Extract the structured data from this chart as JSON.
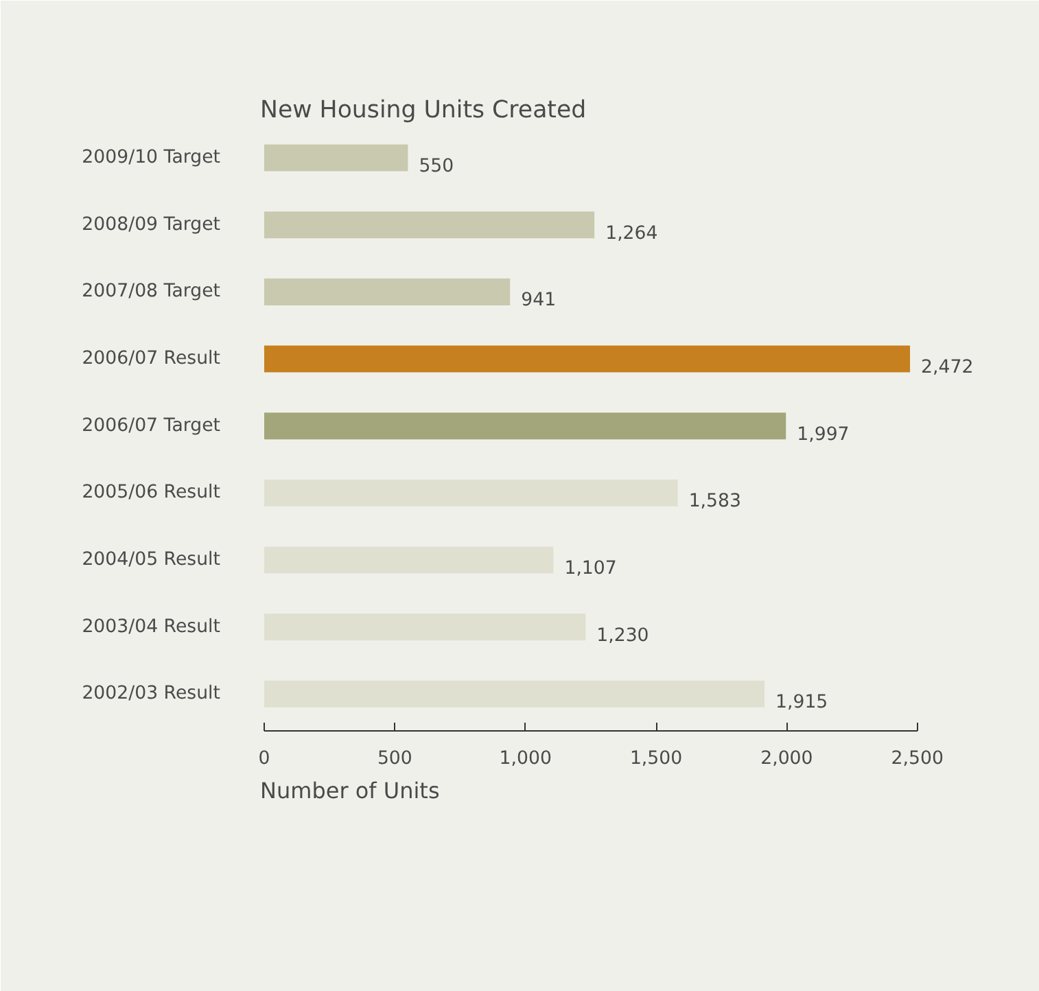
{
  "chart_data": {
    "type": "bar",
    "orientation": "horizontal",
    "title": "New Housing Units Created",
    "xlabel": "Number of Units",
    "categories": [
      "2009/10 Target",
      "2008/09 Target",
      "2007/08 Target",
      "2006/07 Result",
      "2006/07 Target",
      "2005/06 Result",
      "2004/05 Result",
      "2003/04 Result",
      "2002/03 Result"
    ],
    "values": [
      550,
      1264,
      941,
      2472,
      1997,
      1583,
      1107,
      1230,
      1915
    ],
    "colors": [
      "#c8c9ae",
      "#c8c9ae",
      "#c8c9ae",
      "#c7801f",
      "#a3a67a",
      "#dfe0d0",
      "#dfe0d0",
      "#dfe0d0",
      "#dfe0d0"
    ],
    "value_labels": [
      "550",
      "1,264",
      "941",
      "2,472",
      "1,997",
      "1,583",
      "1,107",
      "1,230",
      "1,915"
    ],
    "xlim": [
      0,
      2500
    ],
    "xticks": [
      0,
      500,
      {
        "value": 1000,
        "label": "1,000"
      },
      {
        "value": 1500,
        "label": "1,500"
      },
      {
        "value": 2000,
        "label": "2,000"
      },
      {
        "value": 2500,
        "label": "2,500"
      }
    ]
  }
}
